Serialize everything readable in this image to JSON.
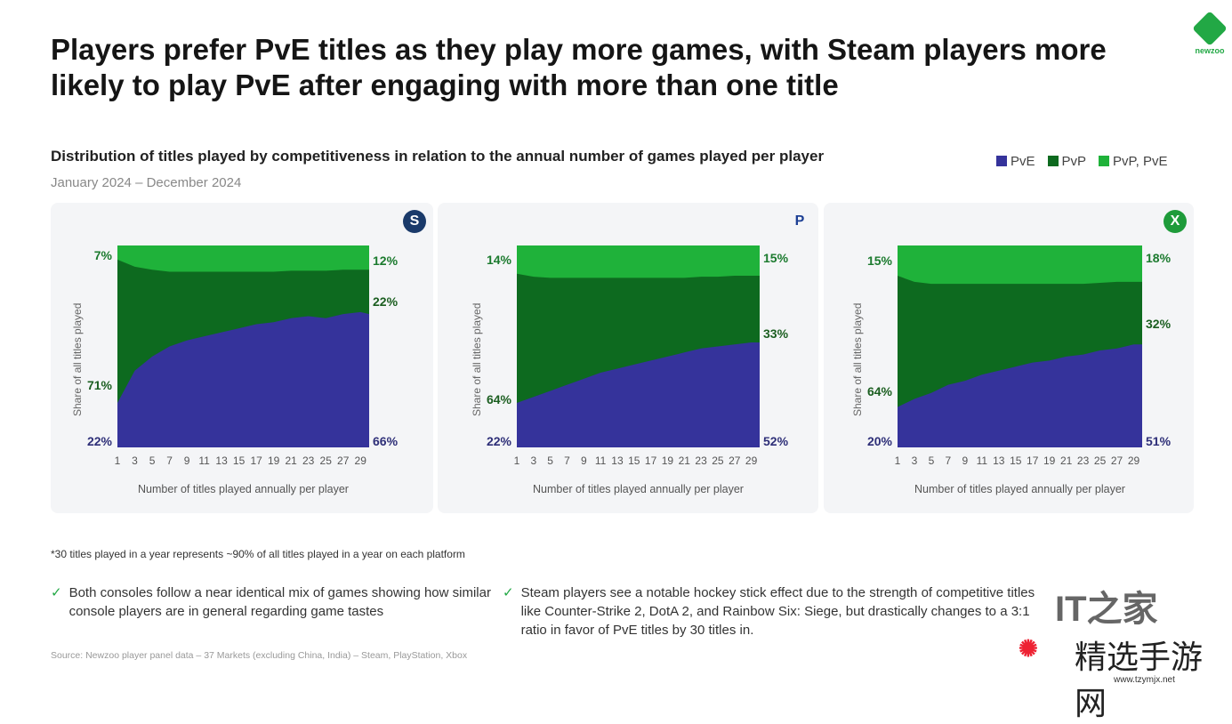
{
  "title": "Players prefer PvE titles as they play more games, with Steam players more likely to play PvE after engaging with more than one title",
  "logo_text": "newzoo",
  "subtitle": "Distribution of titles played by competitiveness in relation to the annual number of games played per player",
  "date_range": "January 2024 – December 2024",
  "legend": [
    {
      "label": "PvE",
      "color": "#35339b"
    },
    {
      "label": "PvP",
      "color": "#0d6a1f"
    },
    {
      "label": "PvP, PvE",
      "color": "#1fb23a"
    }
  ],
  "footnote": "*30 titles played in a year represents ~90% of all titles played in a year on each platform",
  "bullets": [
    "Both consoles follow a near identical mix of games showing how similar console players are in general regarding game tastes",
    "Steam players see a notable hockey stick effect due to the strength of competitive titles like Counter-Strike 2, DotA 2, and Rainbow Six: Siege, but drastically changes to a 3:1 ratio in favor of PvE titles by 30 titles in."
  ],
  "source": "Source: Newzoo player panel data – 37 Markets (excluding China, India) – Steam, PlayStation, Xbox",
  "watermarks": {
    "it": "IT之家",
    "site": "精选手游网",
    "url": "www.tzymjx.net"
  },
  "chart_data": [
    {
      "type": "area",
      "stacked": true,
      "platform": "Steam",
      "icon": "steam-icon",
      "ylabel": "Share of all titles played",
      "xlabel": "Number of titles played annually per player",
      "ylim": [
        0,
        100
      ],
      "x": [
        1,
        3,
        5,
        7,
        9,
        11,
        13,
        15,
        17,
        19,
        21,
        23,
        25,
        27,
        29,
        30
      ],
      "xticks": [
        "1",
        "3",
        "5",
        "7",
        "9",
        "11",
        "13",
        "15",
        "17",
        "19",
        "21",
        "23",
        "25",
        "27",
        "29"
      ],
      "series": [
        {
          "name": "PvE",
          "values": [
            22,
            38,
            45,
            50,
            53,
            55,
            57,
            59,
            61,
            62,
            64,
            65,
            64,
            66,
            67,
            66
          ]
        },
        {
          "name": "PvP, PvE",
          "values": [
            7,
            10.5,
            12,
            13,
            13,
            13,
            13,
            13,
            13,
            13,
            12.5,
            12.5,
            12.5,
            12,
            12,
            12
          ]
        }
      ],
      "labels_left": [
        "7%",
        "71%",
        "22%"
      ],
      "labels_right": [
        "12%",
        "22%",
        "66%"
      ]
    },
    {
      "type": "area",
      "stacked": true,
      "platform": "PlayStation",
      "icon": "playstation-icon",
      "ylabel": "Share of all titles played",
      "xlabel": "Number of titles played annually per player",
      "ylim": [
        0,
        100
      ],
      "x": [
        1,
        3,
        5,
        7,
        9,
        11,
        13,
        15,
        17,
        19,
        21,
        23,
        25,
        27,
        29,
        30
      ],
      "xticks": [
        "1",
        "3",
        "5",
        "7",
        "9",
        "11",
        "13",
        "15",
        "17",
        "19",
        "21",
        "23",
        "25",
        "27",
        "29"
      ],
      "series": [
        {
          "name": "PvE",
          "values": [
            22,
            25,
            28,
            31,
            34,
            37,
            39,
            41,
            43,
            45,
            47,
            49,
            50,
            51,
            52,
            52
          ]
        },
        {
          "name": "PvP, PvE",
          "values": [
            14,
            15.5,
            16,
            16,
            16,
            16,
            16,
            16,
            16,
            16,
            16,
            15.5,
            15.5,
            15,
            15,
            15
          ]
        }
      ],
      "labels_left": [
        "14%",
        "64%",
        "22%"
      ],
      "labels_right": [
        "15%",
        "33%",
        "52%"
      ]
    },
    {
      "type": "area",
      "stacked": true,
      "platform": "Xbox",
      "icon": "xbox-icon",
      "ylabel": "Share of all titles played",
      "xlabel": "Number of titles played annually per player",
      "ylim": [
        0,
        100
      ],
      "x": [
        1,
        3,
        5,
        7,
        9,
        11,
        13,
        15,
        17,
        19,
        21,
        23,
        25,
        27,
        29,
        30
      ],
      "xticks": [
        "1",
        "3",
        "5",
        "7",
        "9",
        "11",
        "13",
        "15",
        "17",
        "19",
        "21",
        "23",
        "25",
        "27",
        "29"
      ],
      "series": [
        {
          "name": "PvE",
          "values": [
            20,
            24,
            27,
            31,
            33,
            36,
            38,
            40,
            42,
            43,
            45,
            46,
            48,
            49,
            51,
            51
          ]
        },
        {
          "name": "PvP, PvE",
          "values": [
            15,
            18,
            19,
            19,
            19,
            19,
            19,
            19,
            19,
            19,
            19,
            19,
            18.5,
            18,
            18,
            18
          ]
        }
      ],
      "labels_left": [
        "15%",
        "64%",
        "20%"
      ],
      "labels_right": [
        "18%",
        "32%",
        "51%"
      ]
    }
  ]
}
